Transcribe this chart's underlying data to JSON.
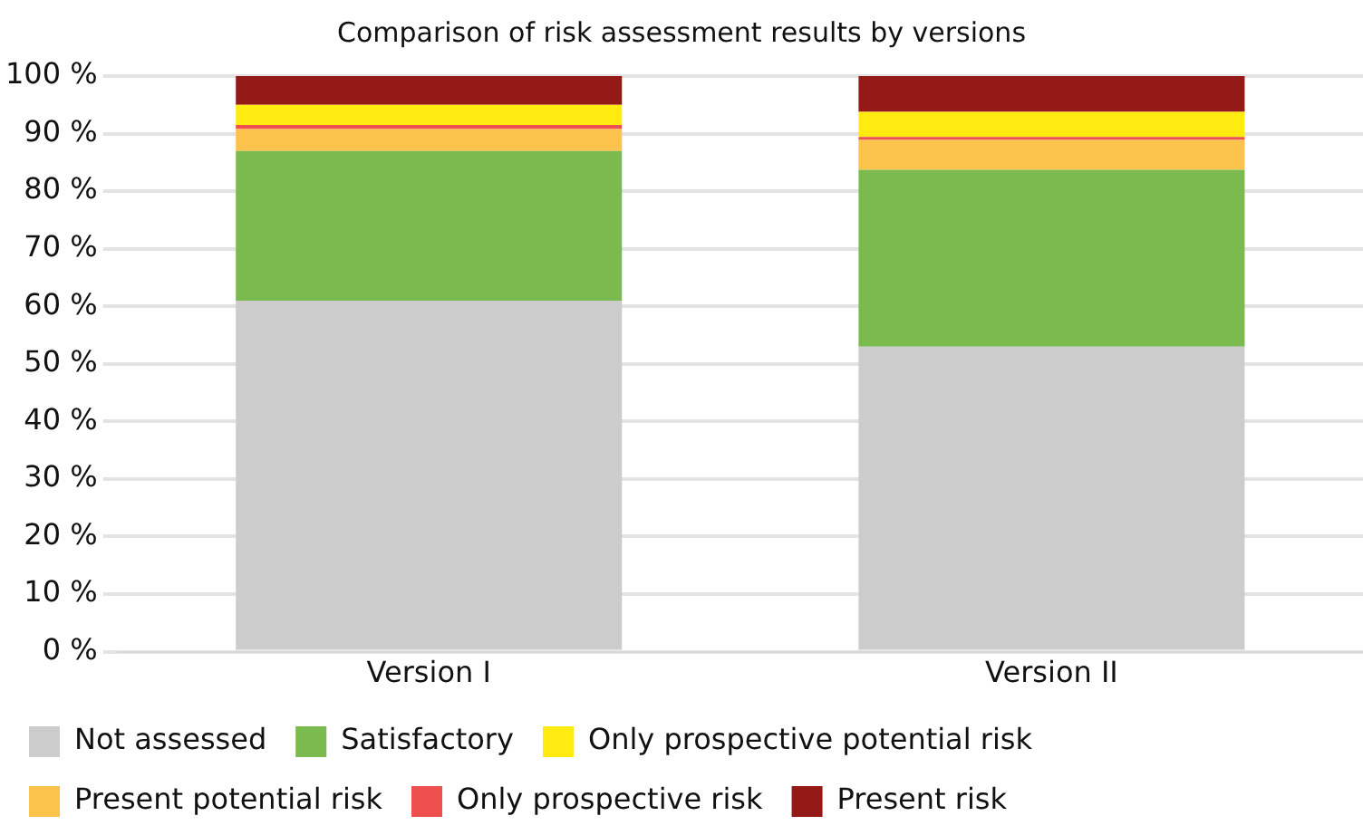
{
  "chart_data": {
    "type": "bar",
    "title": "Comparison of risk assessment results by versions",
    "categories": [
      "Version I",
      "Version II"
    ],
    "stacked": true,
    "ylim": [
      0,
      100
    ],
    "yticks": [
      {
        "value": 0,
        "label": "0 %"
      },
      {
        "value": 10,
        "label": "10 %"
      },
      {
        "value": 20,
        "label": "20 %"
      },
      {
        "value": 30,
        "label": "30 %"
      },
      {
        "value": 40,
        "label": "40 %"
      },
      {
        "value": 50,
        "label": "50 %"
      },
      {
        "value": 60,
        "label": "60 %"
      },
      {
        "value": 70,
        "label": "70 %"
      },
      {
        "value": 80,
        "label": "80 %"
      },
      {
        "value": 90,
        "label": "90 %"
      },
      {
        "value": 100,
        "label": "100 %"
      }
    ],
    "grid": "y",
    "legend": "bottom",
    "series": [
      {
        "name": "Not assessed",
        "color": "#cccccc",
        "values": [
          61,
          53
        ]
      },
      {
        "name": "Satisfactory",
        "color": "#7aba4f",
        "values": [
          26,
          30.7
        ]
      },
      {
        "name": "Present potential risk",
        "color": "#fbc34b",
        "values": [
          3.8,
          5.2
        ]
      },
      {
        "name": "Only prospective risk",
        "color": "#ee5050",
        "values": [
          0.7,
          0.5
        ]
      },
      {
        "name": "Only prospective potential risk",
        "color": "#ffeb10",
        "values": [
          3.5,
          4.4
        ]
      },
      {
        "name": "Present risk",
        "color": "#941a18",
        "values": [
          5,
          6.2
        ]
      }
    ]
  }
}
